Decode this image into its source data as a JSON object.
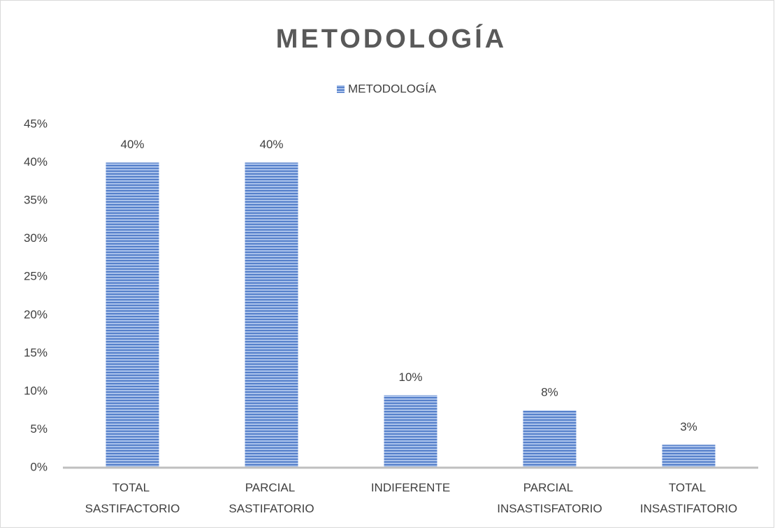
{
  "chart_data": {
    "type": "bar",
    "title": "METODOLOGÍA",
    "categories": [
      "TOTAL SASTIFACTORIO",
      "PARCIAL SASTIFATORIO",
      "INDIFERENTE",
      "PARCIAL INSASTISFATORIO",
      "TOTAL INSASTIFATORIO"
    ],
    "series": [
      {
        "name": "METODOLOGÍA",
        "color": "#4472c4",
        "values": [
          40,
          40,
          9.5,
          7.5,
          3
        ],
        "value_labels": [
          "40%",
          "40%",
          "10%",
          "8%",
          "3%"
        ]
      }
    ],
    "ylim": [
      0,
      45
    ],
    "yticks": [
      {
        "value": 0,
        "label": "0%"
      },
      {
        "value": 5,
        "label": "5%"
      },
      {
        "value": 10,
        "label": "10%"
      },
      {
        "value": 15,
        "label": "15%"
      },
      {
        "value": 20,
        "label": "20%"
      },
      {
        "value": 25,
        "label": "25%"
      },
      {
        "value": 30,
        "label": "30%"
      },
      {
        "value": 35,
        "label": "35%"
      },
      {
        "value": 40,
        "label": "40%"
      },
      {
        "value": 45,
        "label": "45%"
      }
    ],
    "grid": false,
    "legend": "top"
  }
}
